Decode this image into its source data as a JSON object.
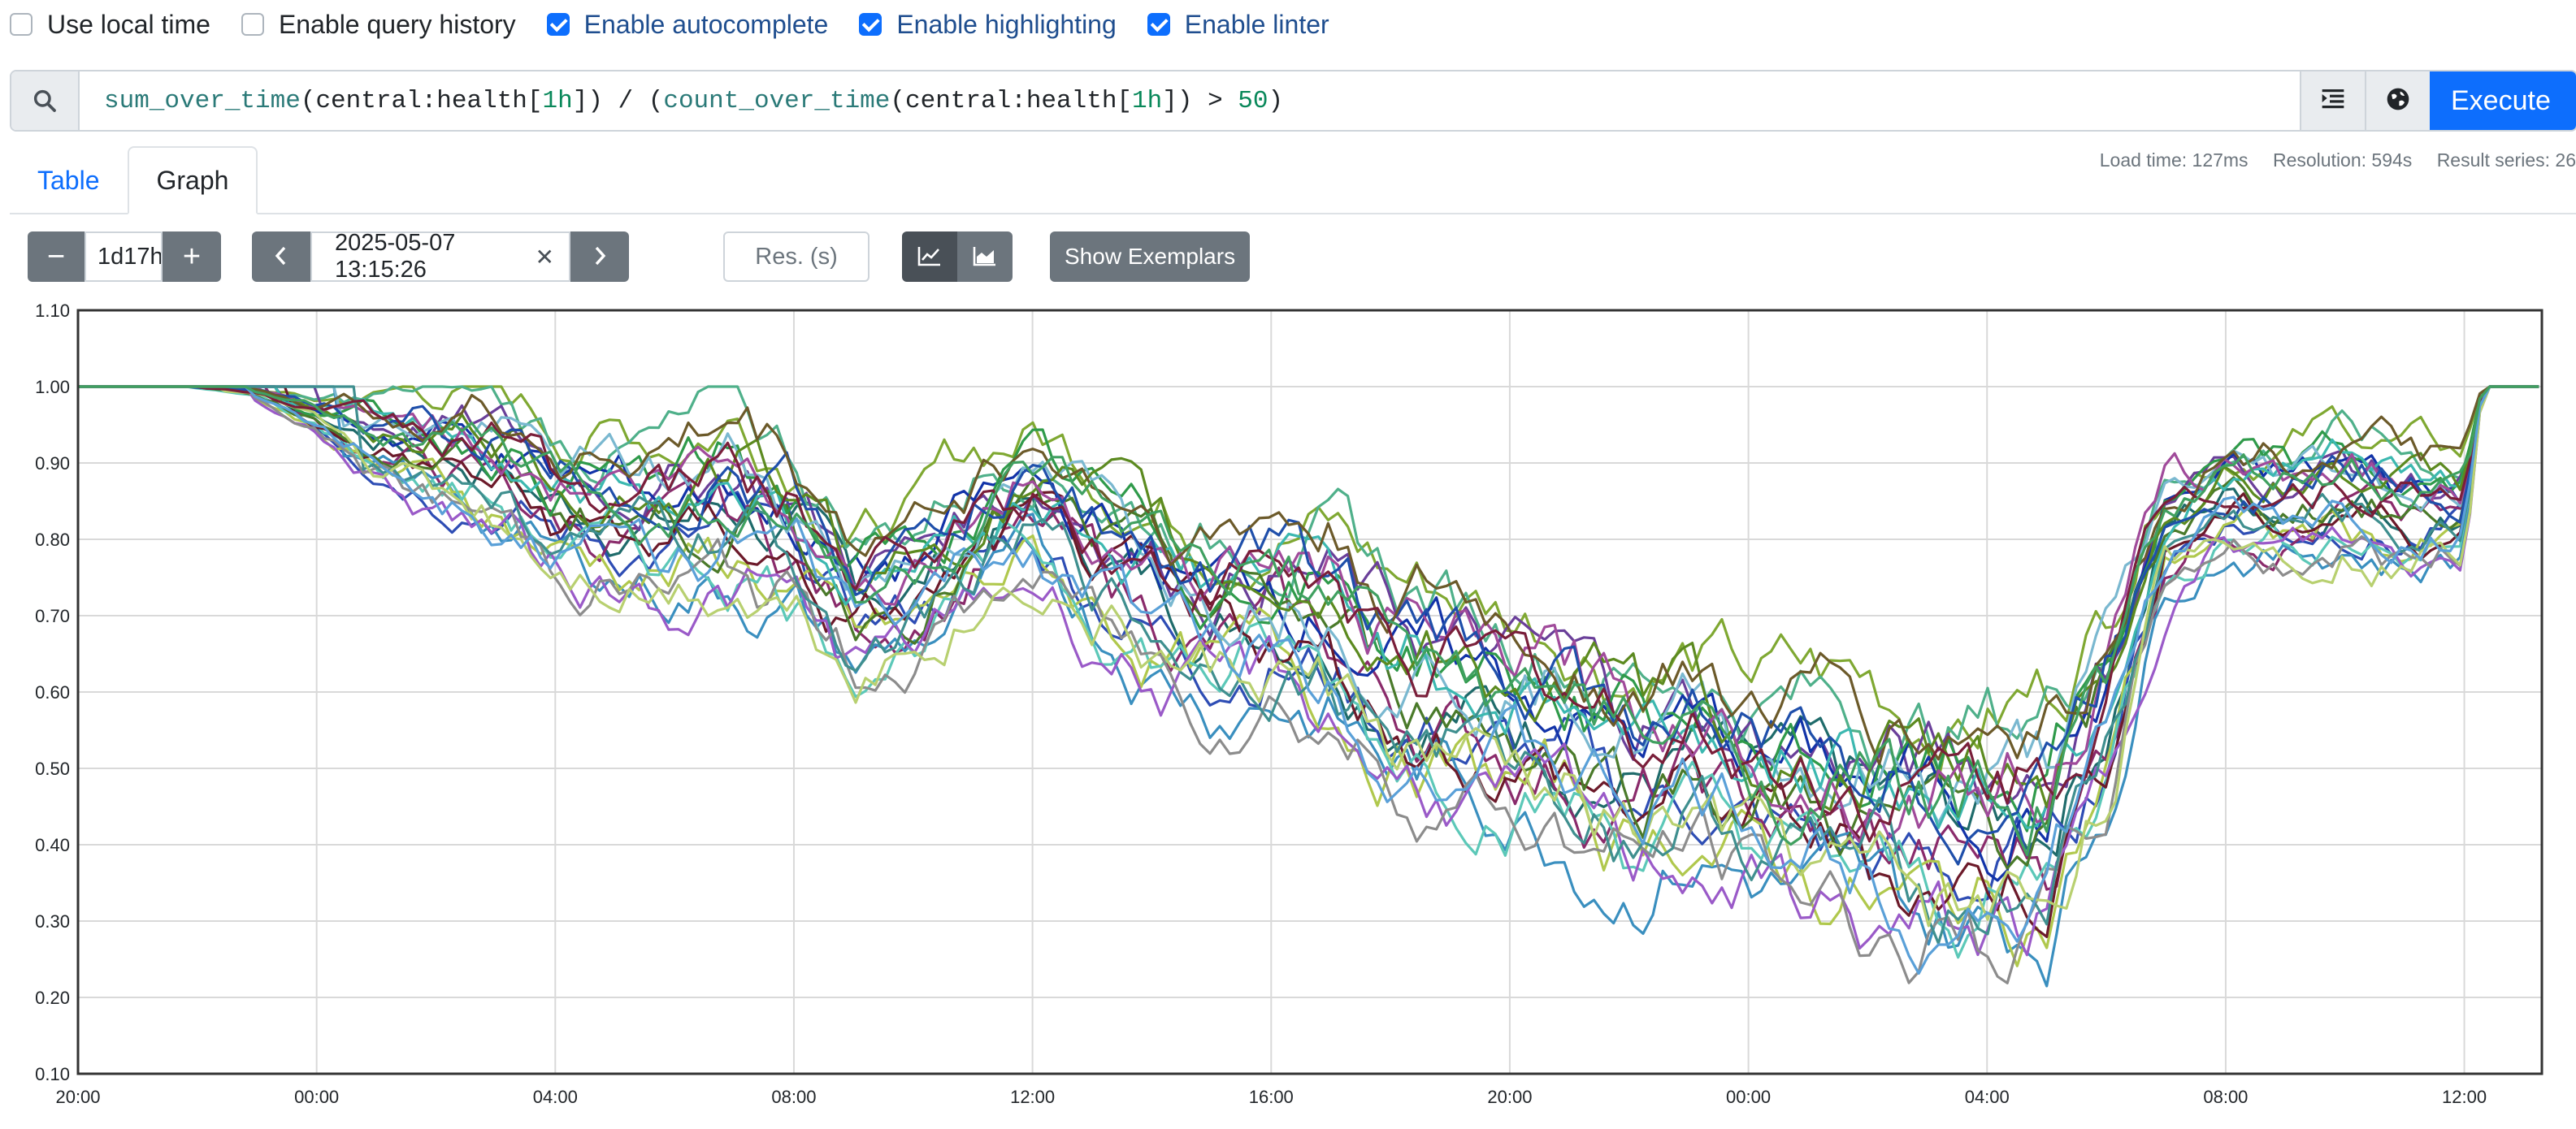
{
  "options": [
    {
      "label": "Use local time",
      "checked": false
    },
    {
      "label": "Enable query history",
      "checked": false
    },
    {
      "label": "Enable autocomplete",
      "checked": true
    },
    {
      "label": "Enable highlighting",
      "checked": true
    },
    {
      "label": "Enable linter",
      "checked": true
    }
  ],
  "query": {
    "tokens": [
      {
        "t": "sum_over_time",
        "c": "fn"
      },
      {
        "t": "(central:health[",
        "c": ""
      },
      {
        "t": "1h",
        "c": "num"
      },
      {
        "t": "]) / (",
        "c": ""
      },
      {
        "t": "count_over_time",
        "c": "fn"
      },
      {
        "t": "(central:health[",
        "c": ""
      },
      {
        "t": "1h",
        "c": "num"
      },
      {
        "t": "]) > ",
        "c": ""
      },
      {
        "t": "50",
        "c": "num"
      },
      {
        "t": ")",
        "c": ""
      }
    ],
    "execute_label": "Execute",
    "search_icon": "search-icon",
    "format_icon": "format-indent-icon",
    "explorer_icon": "metrics-explorer-globe-icon"
  },
  "tabs": {
    "table": "Table",
    "graph": "Graph",
    "active": "graph"
  },
  "stats": {
    "load_time": "Load time: 127ms",
    "resolution": "Resolution: 594s",
    "result_series": "Result series: 26"
  },
  "controls": {
    "range": "1d17h",
    "minus": "−",
    "plus": "+",
    "end_time": "2025-05-07 13:15:26",
    "clear": "✕",
    "resolution_placeholder": "Res. (s)",
    "show_exemplars": "Show Exemplars",
    "line_icon": "line-chart-icon",
    "stacked_icon": "stacked-area-chart-icon"
  },
  "chart_data": {
    "type": "line",
    "ylim": [
      0.1,
      1.1
    ],
    "yticks": [
      "0.10",
      "0.20",
      "0.30",
      "0.40",
      "0.50",
      "0.60",
      "0.70",
      "0.80",
      "0.90",
      "1.00",
      "1.10"
    ],
    "xticks": [
      "20:00",
      "00:00",
      "04:00",
      "08:00",
      "12:00",
      "16:00",
      "20:00",
      "00:00",
      "04:00",
      "08:00",
      "12:00"
    ],
    "x_start_hours": 0,
    "x_end_hours": 41.3,
    "grid": true,
    "series_count": 26,
    "colors": [
      "#1f6b6b",
      "#7fa832",
      "#2e4db4",
      "#8a2b6b",
      "#4fb08a",
      "#6a3f99",
      "#3a8fbf",
      "#b0c84d",
      "#1233a8",
      "#5cc8b8",
      "#6c1a2a",
      "#4a7a2a",
      "#9a5ac8",
      "#2f9a4a",
      "#7ab8d0",
      "#8c8c8c",
      "#3cb8b0",
      "#5c8a20",
      "#a04a9a",
      "#1f4faa",
      "#6c5a2a",
      "#3f8f8f",
      "#b8d070",
      "#7a1f3a",
      "#5aa0d8",
      "#40a060"
    ],
    "envelope_hours": [
      0,
      1.8,
      3,
      4,
      5,
      6,
      7,
      8,
      9,
      10,
      11,
      12,
      13,
      14,
      15,
      16,
      17,
      18,
      19,
      20,
      21,
      22,
      23,
      24,
      25,
      26,
      27,
      28,
      29,
      30,
      31,
      32,
      33,
      34,
      35,
      36,
      37,
      38,
      39,
      40,
      40.3,
      41.3
    ],
    "envelope_mid": [
      1.0,
      1.0,
      0.99,
      0.96,
      0.93,
      0.92,
      0.9,
      0.85,
      0.84,
      0.83,
      0.85,
      0.81,
      0.72,
      0.74,
      0.8,
      0.84,
      0.79,
      0.74,
      0.7,
      0.72,
      0.69,
      0.62,
      0.6,
      0.57,
      0.55,
      0.5,
      0.52,
      0.48,
      0.46,
      0.44,
      0.42,
      0.42,
      0.44,
      0.58,
      0.82,
      0.86,
      0.85,
      0.87,
      0.84,
      0.84,
      1.0,
      1.0
    ],
    "envelope_spread": [
      0,
      0,
      0.01,
      0.03,
      0.08,
      0.12,
      0.13,
      0.14,
      0.15,
      0.16,
      0.18,
      0.17,
      0.15,
      0.14,
      0.16,
      0.15,
      0.17,
      0.18,
      0.18,
      0.19,
      0.2,
      0.2,
      0.2,
      0.2,
      0.22,
      0.22,
      0.2,
      0.2,
      0.22,
      0.24,
      0.24,
      0.24,
      0.24,
      0.2,
      0.12,
      0.1,
      0.12,
      0.12,
      0.12,
      0.1,
      0,
      0
    ]
  }
}
